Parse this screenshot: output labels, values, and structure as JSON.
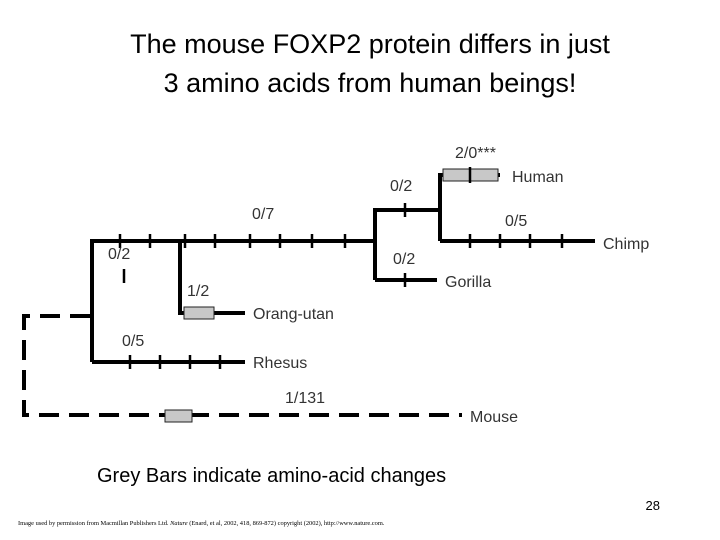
{
  "header": {
    "title_lines": [
      "The mouse FOXP2 protein differs in just",
      "3 amino acids from human beings!"
    ]
  },
  "tree": {
    "branch_labels": [
      "0/2",
      "0/7",
      "1/2",
      "0/5",
      "1/131",
      "0/2",
      "0/2",
      "2/0***",
      "0/5"
    ],
    "taxa": [
      "Human",
      "Chimp",
      "Gorilla",
      "Orang-utan",
      "Rhesus",
      "Mouse"
    ]
  },
  "caption": "Grey Bars indicate amino-acid changes",
  "page_number": "28",
  "credit": {
    "before": "Image used by permission from Macmillan Publishers Ltd. ",
    "journal": "Nature",
    "after": " (Enard, et al, 2002, 418, 869-872) copyright (2002), http://www.nature.com."
  }
}
